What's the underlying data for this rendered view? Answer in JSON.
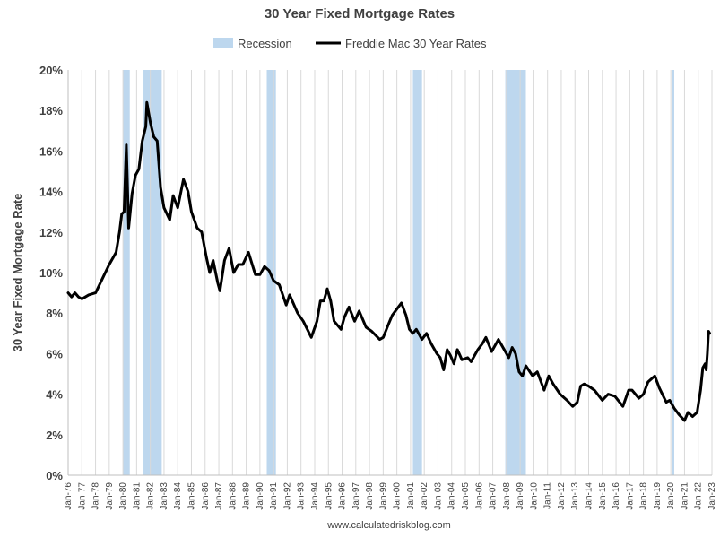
{
  "chart_data": {
    "type": "line",
    "title": "30 Year Fixed Mortgage Rates",
    "ylabel": "30 Year Fixed Mortgage Rate",
    "xlabel": "",
    "source": "www.calculatedriskblog.com",
    "ylim": [
      0,
      20
    ],
    "xlim": [
      "1976-01",
      "2023-01"
    ],
    "y_ticks": [
      "0%",
      "2%",
      "4%",
      "6%",
      "8%",
      "10%",
      "12%",
      "14%",
      "16%",
      "18%",
      "20%"
    ],
    "x_ticks": [
      "Jan-76",
      "Jan-77",
      "Jan-78",
      "Jan-79",
      "Jan-80",
      "Jan-81",
      "Jan-82",
      "Jan-83",
      "Jan-84",
      "Jan-85",
      "Jan-86",
      "Jan-87",
      "Jan-88",
      "Jan-89",
      "Jan-90",
      "Jan-91",
      "Jan-92",
      "Jan-93",
      "Jan-94",
      "Jan-95",
      "Jan-96",
      "Jan-97",
      "Jan-98",
      "Jan-99",
      "Jan-00",
      "Jan-01",
      "Jan-02",
      "Jan-03",
      "Jan-04",
      "Jan-05",
      "Jan-06",
      "Jan-07",
      "Jan-08",
      "Jan-09",
      "Jan-10",
      "Jan-11",
      "Jan-12",
      "Jan-13",
      "Jan-14",
      "Jan-15",
      "Jan-16",
      "Jan-17",
      "Jan-18",
      "Jan-19",
      "Jan-20",
      "Jan-21",
      "Jan-22",
      "Jan-23"
    ],
    "grid": "vertical",
    "legend_position": "top",
    "legend": [
      {
        "label": "Recession",
        "kind": "band",
        "color": "#bdd7ee"
      },
      {
        "label": "Freddie Mac 30 Year Rates",
        "kind": "line",
        "color": "#000000"
      }
    ],
    "recessions": [
      {
        "start": "1980-01",
        "end": "1980-07"
      },
      {
        "start": "1981-07",
        "end": "1982-11"
      },
      {
        "start": "1990-07",
        "end": "1991-03"
      },
      {
        "start": "2001-03",
        "end": "2001-11"
      },
      {
        "start": "2007-12",
        "end": "2009-06"
      },
      {
        "start": "2020-02",
        "end": "2020-04"
      }
    ],
    "series": [
      {
        "name": "Freddie Mac 30 Year Rates",
        "color": "#000000",
        "points": [
          [
            "1976-01",
            9.0
          ],
          [
            "1976-04",
            8.8
          ],
          [
            "1976-07",
            9.0
          ],
          [
            "1976-10",
            8.8
          ],
          [
            "1977-01",
            8.7
          ],
          [
            "1977-07",
            8.9
          ],
          [
            "1978-01",
            9.0
          ],
          [
            "1978-07",
            9.7
          ],
          [
            "1979-01",
            10.4
          ],
          [
            "1979-07",
            11.0
          ],
          [
            "1979-10",
            12.0
          ],
          [
            "1979-12",
            12.9
          ],
          [
            "1980-02",
            13.0
          ],
          [
            "1980-04",
            16.3
          ],
          [
            "1980-06",
            12.2
          ],
          [
            "1980-09",
            13.9
          ],
          [
            "1980-12",
            14.8
          ],
          [
            "1981-03",
            15.1
          ],
          [
            "1981-06",
            16.5
          ],
          [
            "1981-09",
            17.2
          ],
          [
            "1981-10",
            18.4
          ],
          [
            "1982-01",
            17.4
          ],
          [
            "1982-04",
            16.7
          ],
          [
            "1982-07",
            16.5
          ],
          [
            "1982-10",
            14.2
          ],
          [
            "1983-01",
            13.2
          ],
          [
            "1983-06",
            12.6
          ],
          [
            "1983-09",
            13.8
          ],
          [
            "1984-01",
            13.2
          ],
          [
            "1984-06",
            14.6
          ],
          [
            "1984-10",
            14.0
          ],
          [
            "1985-01",
            13.0
          ],
          [
            "1985-06",
            12.2
          ],
          [
            "1985-10",
            12.0
          ],
          [
            "1986-02",
            10.8
          ],
          [
            "1986-05",
            10.0
          ],
          [
            "1986-08",
            10.6
          ],
          [
            "1986-12",
            9.5
          ],
          [
            "1987-02",
            9.1
          ],
          [
            "1987-06",
            10.6
          ],
          [
            "1987-10",
            11.2
          ],
          [
            "1988-02",
            10.0
          ],
          [
            "1988-06",
            10.4
          ],
          [
            "1988-10",
            10.4
          ],
          [
            "1989-03",
            11.0
          ],
          [
            "1989-09",
            9.9
          ],
          [
            "1990-01",
            9.9
          ],
          [
            "1990-05",
            10.3
          ],
          [
            "1990-09",
            10.1
          ],
          [
            "1991-01",
            9.6
          ],
          [
            "1991-06",
            9.4
          ],
          [
            "1991-12",
            8.4
          ],
          [
            "1992-03",
            8.9
          ],
          [
            "1992-10",
            8.0
          ],
          [
            "1993-03",
            7.6
          ],
          [
            "1993-10",
            6.8
          ],
          [
            "1994-03",
            7.6
          ],
          [
            "1994-06",
            8.6
          ],
          [
            "1994-09",
            8.6
          ],
          [
            "1994-12",
            9.2
          ],
          [
            "1995-03",
            8.6
          ],
          [
            "1995-06",
            7.6
          ],
          [
            "1995-12",
            7.2
          ],
          [
            "1996-03",
            7.8
          ],
          [
            "1996-07",
            8.3
          ],
          [
            "1996-12",
            7.6
          ],
          [
            "1997-04",
            8.1
          ],
          [
            "1997-10",
            7.3
          ],
          [
            "1998-03",
            7.1
          ],
          [
            "1998-10",
            6.7
          ],
          [
            "1999-01",
            6.8
          ],
          [
            "1999-06",
            7.5
          ],
          [
            "1999-09",
            7.9
          ],
          [
            "2000-01",
            8.2
          ],
          [
            "2000-05",
            8.5
          ],
          [
            "2000-09",
            7.9
          ],
          [
            "2000-12",
            7.2
          ],
          [
            "2001-03",
            7.0
          ],
          [
            "2001-06",
            7.2
          ],
          [
            "2001-11",
            6.7
          ],
          [
            "2002-03",
            7.0
          ],
          [
            "2002-07",
            6.5
          ],
          [
            "2002-12",
            6.0
          ],
          [
            "2003-03",
            5.8
          ],
          [
            "2003-06",
            5.2
          ],
          [
            "2003-09",
            6.2
          ],
          [
            "2003-12",
            5.9
          ],
          [
            "2004-03",
            5.5
          ],
          [
            "2004-06",
            6.2
          ],
          [
            "2004-10",
            5.7
          ],
          [
            "2005-03",
            5.8
          ],
          [
            "2005-06",
            5.6
          ],
          [
            "2005-12",
            6.2
          ],
          [
            "2006-04",
            6.5
          ],
          [
            "2006-07",
            6.8
          ],
          [
            "2006-12",
            6.1
          ],
          [
            "2007-06",
            6.7
          ],
          [
            "2007-12",
            6.1
          ],
          [
            "2008-03",
            5.8
          ],
          [
            "2008-06",
            6.3
          ],
          [
            "2008-09",
            6.0
          ],
          [
            "2008-12",
            5.1
          ],
          [
            "2009-03",
            4.9
          ],
          [
            "2009-06",
            5.4
          ],
          [
            "2009-12",
            4.9
          ],
          [
            "2010-04",
            5.1
          ],
          [
            "2010-10",
            4.2
          ],
          [
            "2011-02",
            4.9
          ],
          [
            "2011-06",
            4.5
          ],
          [
            "2011-12",
            4.0
          ],
          [
            "2012-06",
            3.7
          ],
          [
            "2012-11",
            3.4
          ],
          [
            "2013-03",
            3.6
          ],
          [
            "2013-06",
            4.4
          ],
          [
            "2013-09",
            4.5
          ],
          [
            "2014-01",
            4.4
          ],
          [
            "2014-06",
            4.2
          ],
          [
            "2015-01",
            3.7
          ],
          [
            "2015-06",
            4.0
          ],
          [
            "2015-12",
            3.9
          ],
          [
            "2016-07",
            3.4
          ],
          [
            "2016-12",
            4.2
          ],
          [
            "2017-03",
            4.2
          ],
          [
            "2017-09",
            3.8
          ],
          [
            "2018-01",
            4.0
          ],
          [
            "2018-05",
            4.6
          ],
          [
            "2018-11",
            4.9
          ],
          [
            "2019-03",
            4.3
          ],
          [
            "2019-09",
            3.6
          ],
          [
            "2019-12",
            3.7
          ],
          [
            "2020-04",
            3.3
          ],
          [
            "2020-08",
            3.0
          ],
          [
            "2021-01",
            2.7
          ],
          [
            "2021-04",
            3.1
          ],
          [
            "2021-08",
            2.9
          ],
          [
            "2021-12",
            3.1
          ],
          [
            "2022-03",
            4.2
          ],
          [
            "2022-05",
            5.3
          ],
          [
            "2022-07",
            5.5
          ],
          [
            "2022-08",
            5.2
          ],
          [
            "2022-09",
            6.0
          ],
          [
            "2022-10",
            7.1
          ],
          [
            "2022-11",
            7.0
          ]
        ]
      }
    ]
  }
}
